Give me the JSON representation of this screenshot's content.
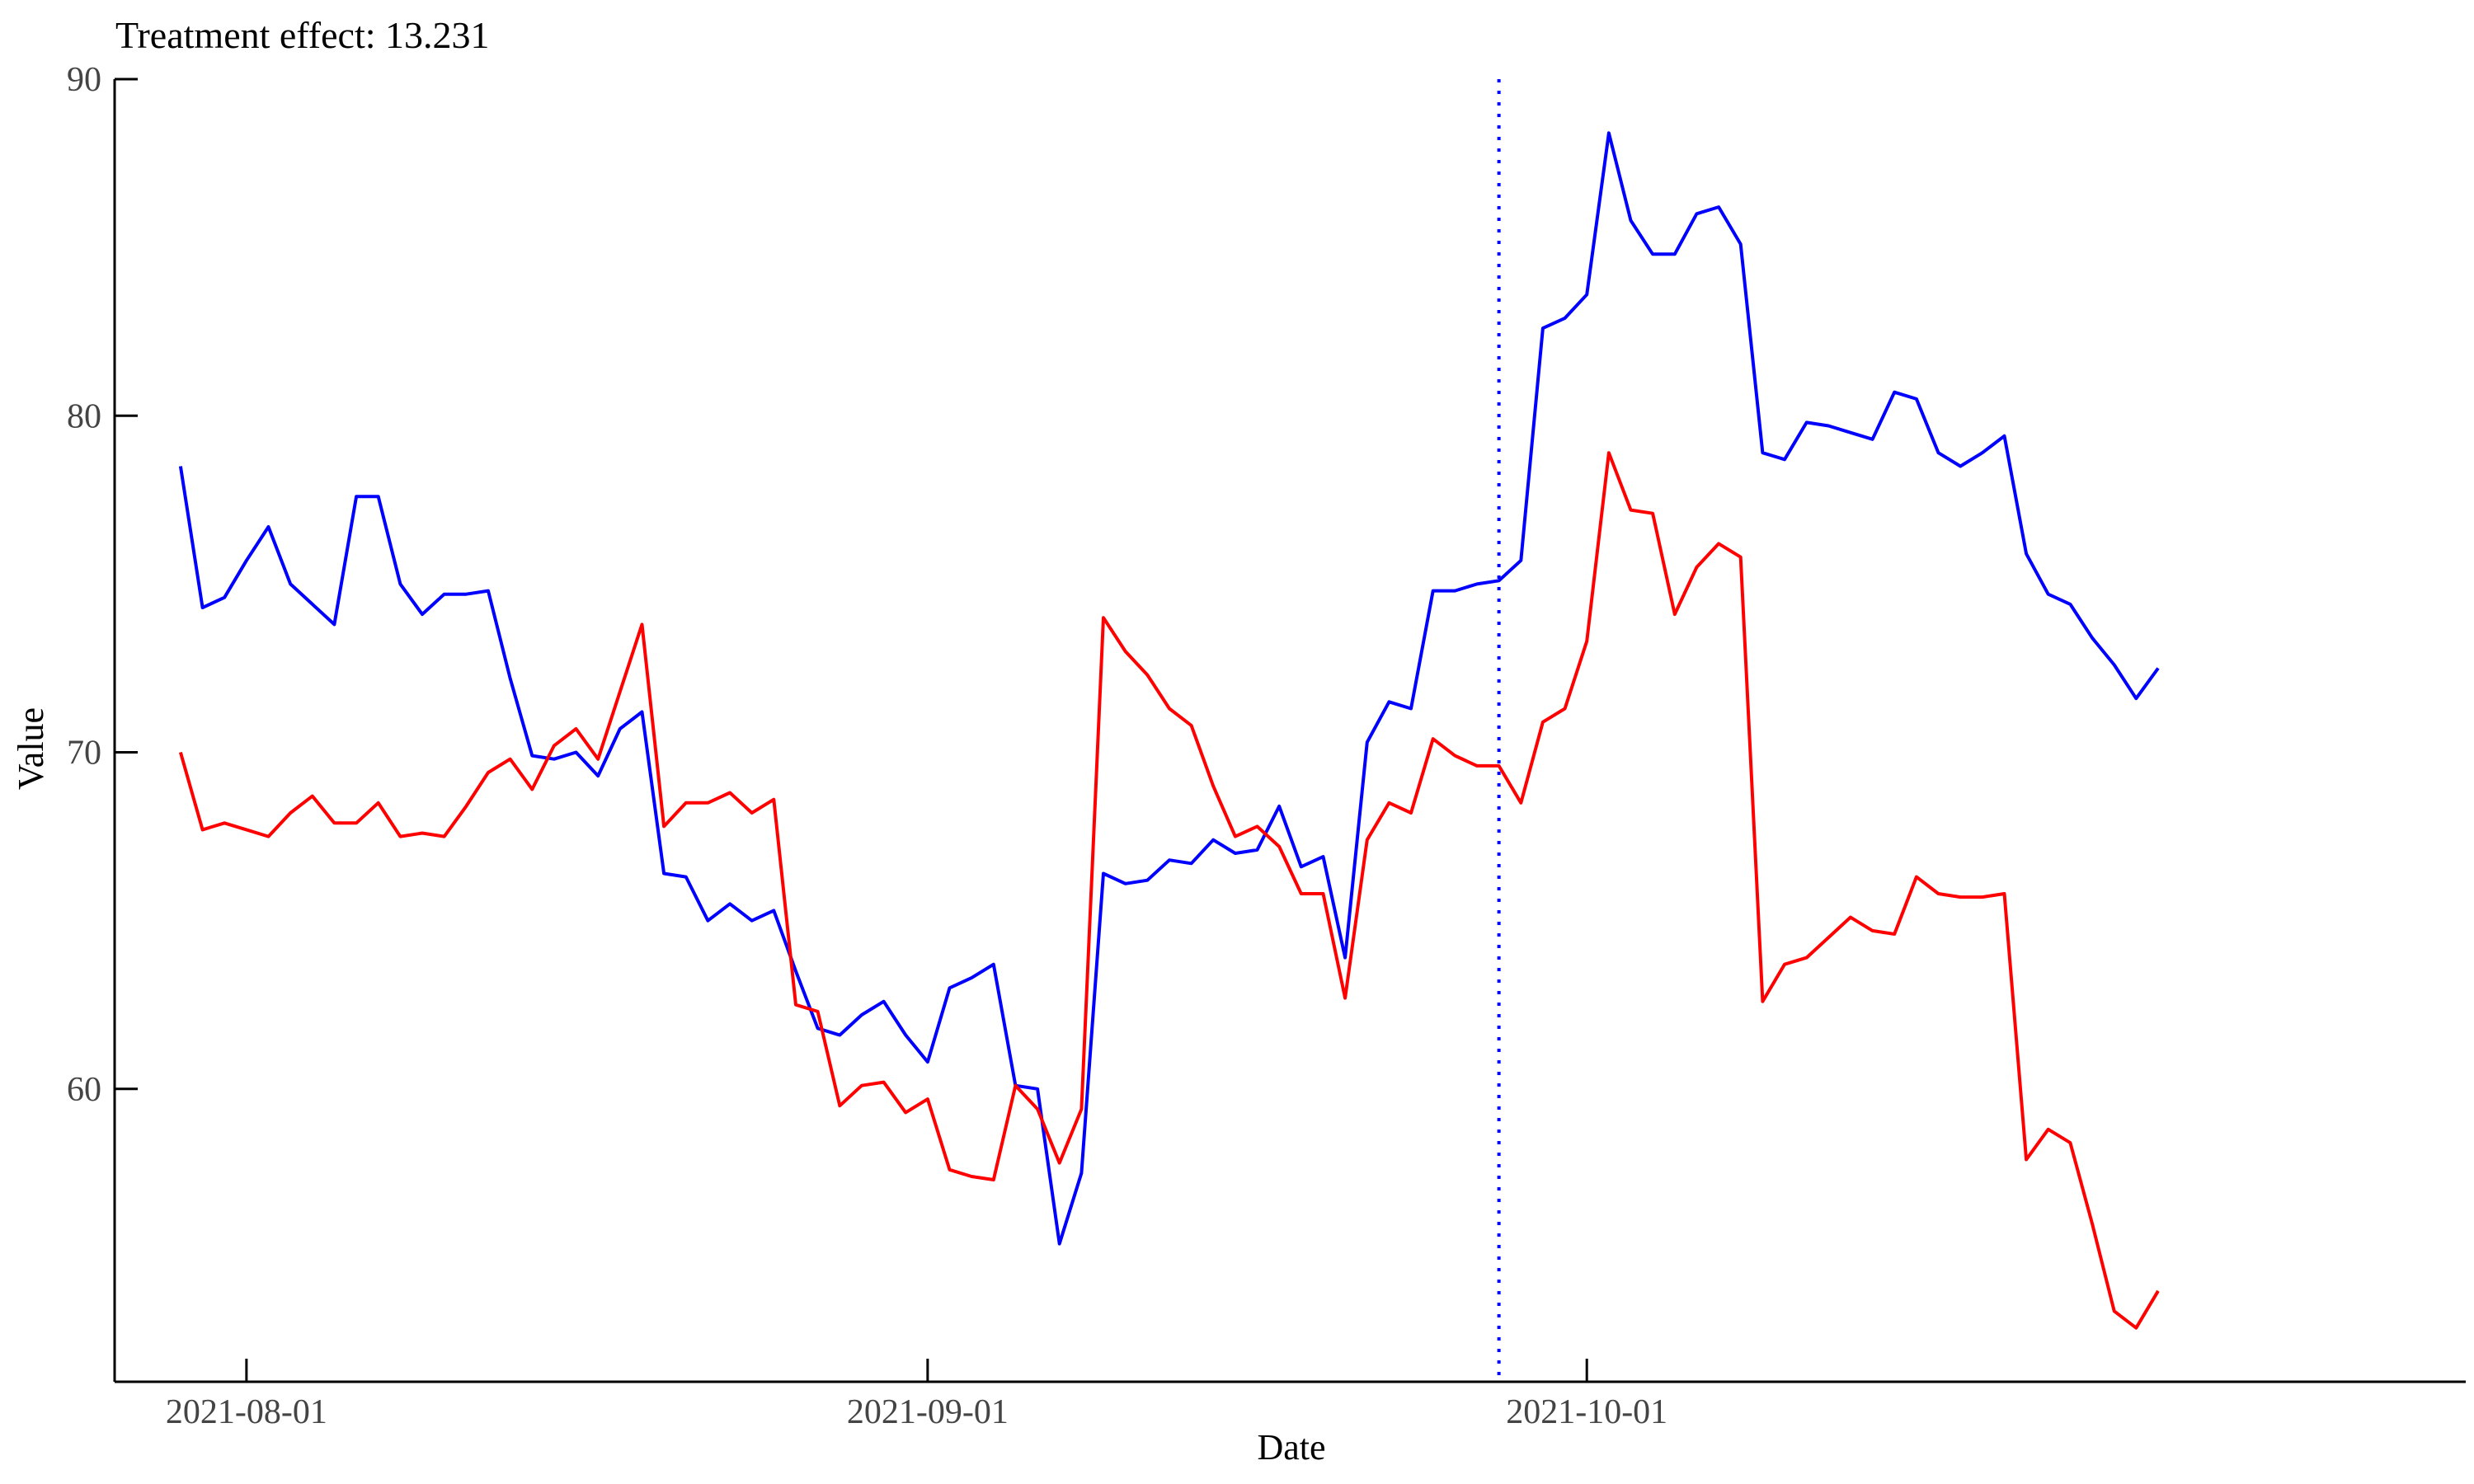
{
  "chart_data": {
    "type": "line",
    "title": "Treatment effect: 13.231",
    "xlabel": "Date",
    "ylabel": "Value",
    "x_start": "2021-07-29",
    "x_step_days": 1,
    "xlim": [
      "2021-07-26",
      "2021-11-10"
    ],
    "ylim": [
      51.3,
      90
    ],
    "x_ticks": [
      "2021-08-01",
      "2021-09-01",
      "2021-10-01"
    ],
    "y_ticks": [
      60,
      70,
      80,
      90
    ],
    "grid": false,
    "treatment_date": "2021-09-27",
    "treatment_line_color": "#0000ff",
    "series": [
      {
        "color": "#0000ff",
        "values": [
          78.5,
          74.3,
          74.6,
          75.7,
          76.7,
          75.0,
          74.4,
          73.8,
          77.6,
          77.6,
          75.0,
          74.1,
          74.7,
          74.7,
          74.8,
          72.2,
          69.9,
          69.8,
          70.0,
          69.3,
          70.7,
          71.2,
          66.4,
          66.3,
          65.0,
          65.5,
          65.0,
          65.3,
          63.5,
          61.8,
          61.6,
          62.2,
          62.6,
          61.6,
          60.8,
          63.0,
          63.3,
          63.7,
          60.1,
          60.0,
          55.4,
          57.5,
          66.4,
          66.1,
          66.2,
          66.8,
          66.7,
          67.4,
          67.0,
          67.1,
          68.4,
          66.6,
          66.9,
          63.9,
          70.3,
          71.5,
          71.3,
          74.8,
          74.8,
          75.0,
          75.1,
          75.7,
          82.6,
          82.9,
          83.6,
          88.4,
          85.8,
          84.8,
          84.8,
          86.0,
          86.2,
          85.1,
          78.9,
          78.7,
          79.8,
          79.7,
          79.5,
          79.3,
          80.7,
          80.5,
          78.9,
          78.5,
          78.9,
          79.4,
          75.9,
          74.7,
          74.4,
          73.4,
          72.6,
          71.6,
          72.5
        ]
      },
      {
        "color": "#ff0000",
        "values": [
          70.0,
          67.7,
          67.9,
          67.7,
          67.5,
          68.2,
          68.7,
          67.9,
          67.9,
          68.5,
          67.5,
          67.6,
          67.5,
          68.4,
          69.4,
          69.8,
          68.9,
          70.2,
          70.7,
          69.8,
          71.8,
          73.8,
          67.8,
          68.5,
          68.5,
          68.8,
          68.2,
          68.6,
          62.5,
          62.3,
          59.5,
          60.1,
          60.2,
          59.3,
          59.7,
          57.6,
          57.4,
          57.3,
          60.1,
          59.4,
          57.8,
          59.4,
          74.0,
          73.0,
          72.3,
          71.3,
          70.8,
          69.0,
          67.5,
          67.8,
          67.2,
          65.8,
          65.8,
          62.7,
          67.4,
          68.5,
          68.2,
          70.4,
          69.9,
          69.6,
          69.6,
          68.5,
          70.9,
          71.3,
          73.3,
          78.9,
          77.2,
          77.1,
          74.1,
          75.5,
          76.2,
          75.8,
          62.6,
          63.7,
          63.9,
          64.5,
          65.1,
          64.7,
          64.6,
          66.3,
          65.8,
          65.7,
          65.7,
          65.8,
          57.9,
          58.8,
          58.4,
          56.0,
          53.4,
          52.9,
          54.0
        ]
      }
    ]
  }
}
